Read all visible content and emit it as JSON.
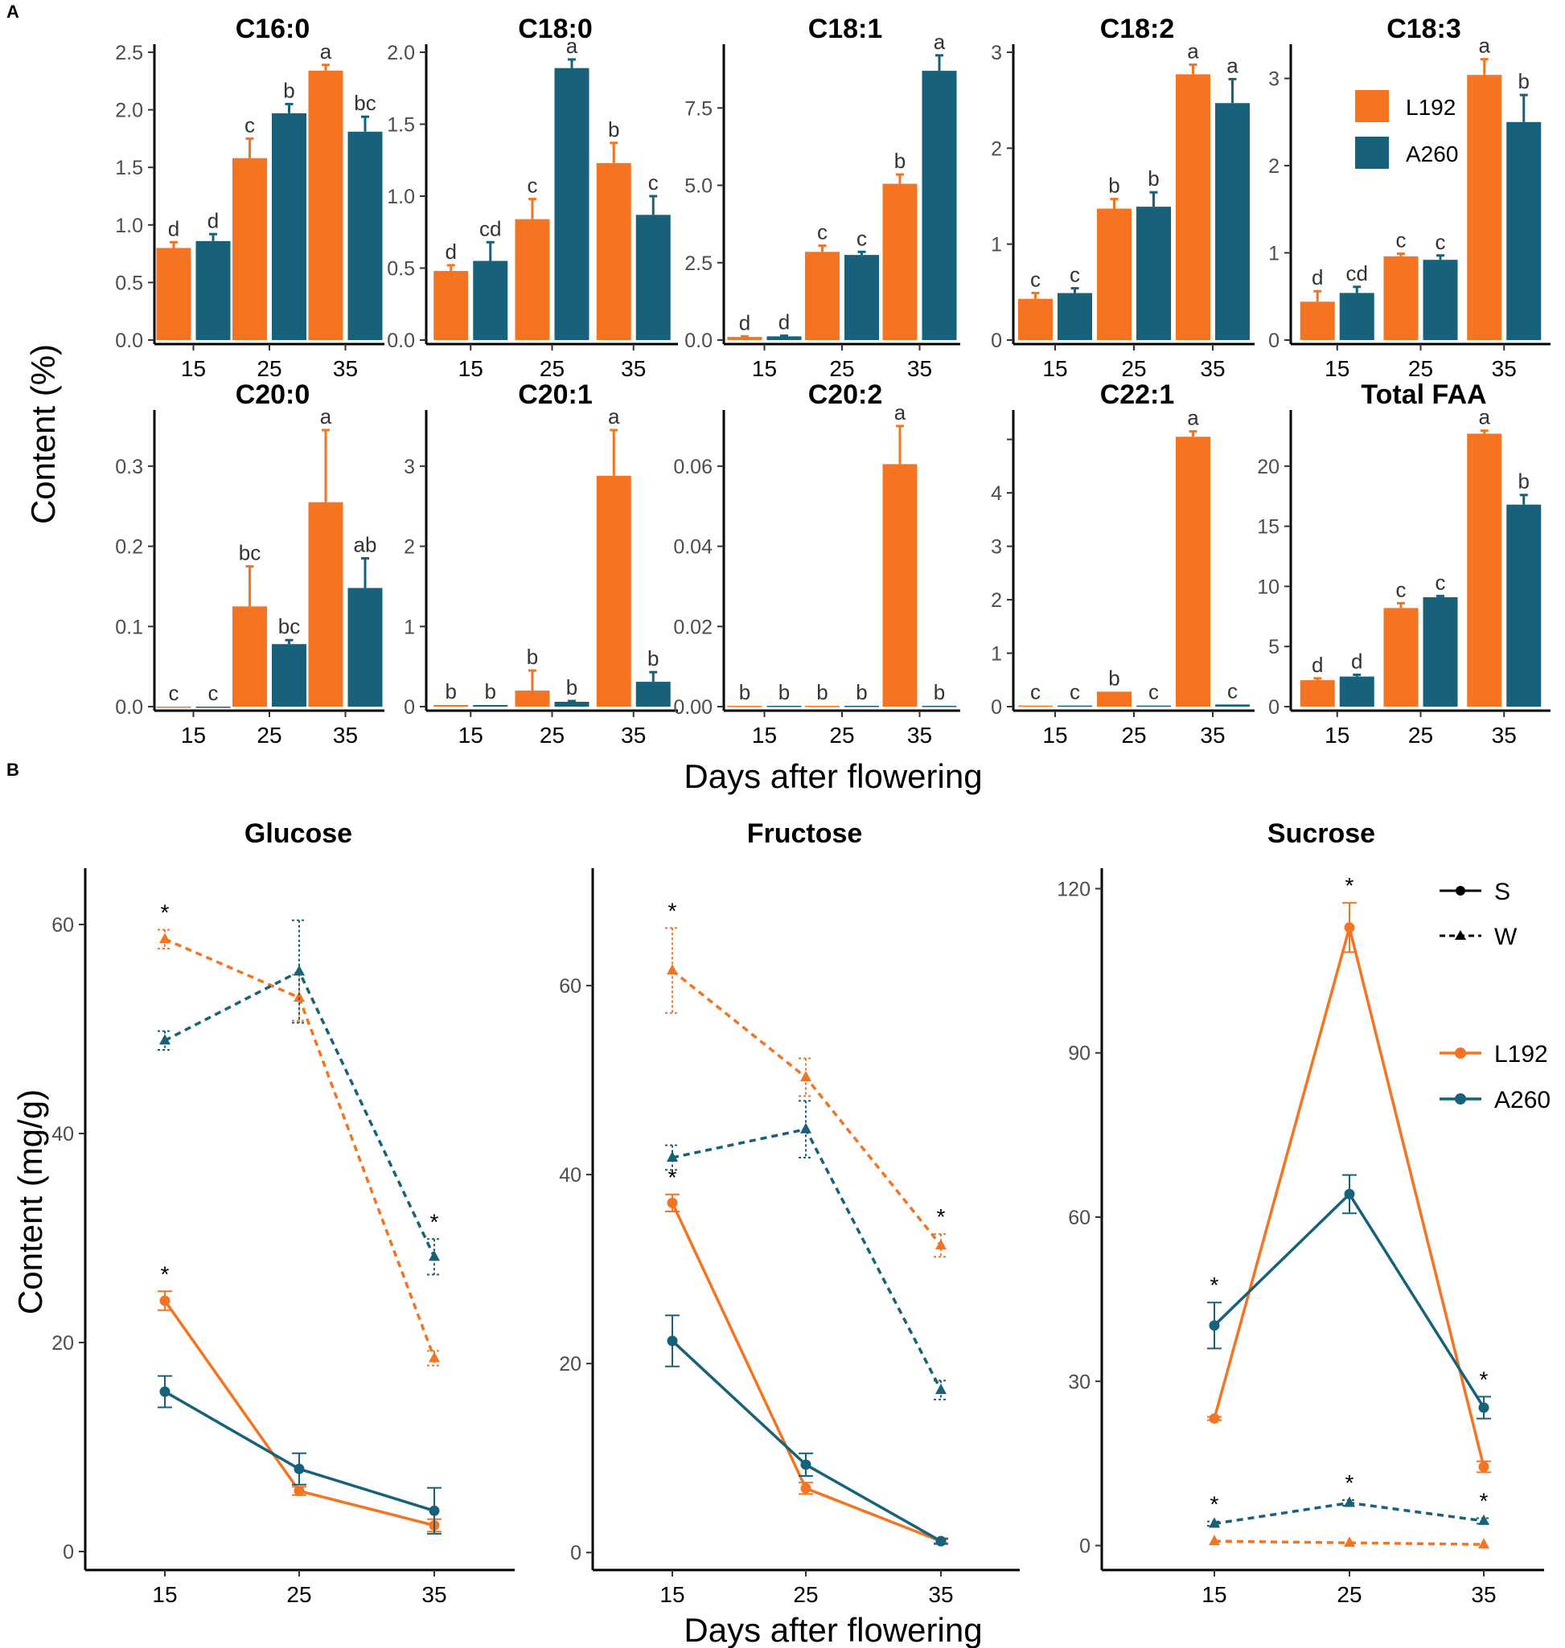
{
  "panel_a": {
    "label": "A",
    "ylabel": "Content (%)",
    "xlabel": "Days after flowering",
    "legend": [
      "L192",
      "A260"
    ]
  },
  "panel_b": {
    "label": "B",
    "ylabel": "Content (mg/g)",
    "xlabel": "Days after flowering",
    "legend_lines": [
      "S",
      "W"
    ],
    "legend_colors": [
      "L192",
      "A260"
    ]
  },
  "colors": {
    "L192": "#F47421",
    "A260": "#17617A",
    "star": "#000000"
  },
  "chart_data": [
    {
      "type": "bar",
      "title": "C16:0",
      "categories": [
        "15",
        "25",
        "35"
      ],
      "ylim": [
        0,
        2.5
      ],
      "ticks": [
        0.0,
        0.5,
        1.0,
        1.5,
        2.0,
        2.5
      ],
      "tick_labels": [
        "0.0",
        "0.5",
        "1.0",
        "1.5",
        "2.0",
        "2.5"
      ],
      "series": [
        {
          "name": "L192",
          "values": [
            0.8,
            1.58,
            2.34
          ],
          "errors": [
            0.05,
            0.17,
            0.05
          ],
          "letters": [
            "d",
            "c",
            "a"
          ]
        },
        {
          "name": "A260",
          "values": [
            0.86,
            1.97,
            1.81
          ],
          "errors": [
            0.06,
            0.08,
            0.13
          ],
          "letters": [
            "d",
            "b",
            "bc"
          ]
        }
      ]
    },
    {
      "type": "bar",
      "title": "C18:0",
      "categories": [
        "15",
        "25",
        "35"
      ],
      "ylim": [
        0,
        2.0
      ],
      "ticks": [
        0.0,
        0.5,
        1.0,
        1.5,
        2.0
      ],
      "tick_labels": [
        "0.0",
        "0.5",
        "1.0",
        "1.5",
        "2.0"
      ],
      "series": [
        {
          "name": "L192",
          "values": [
            0.48,
            0.84,
            1.23
          ],
          "errors": [
            0.04,
            0.14,
            0.14
          ],
          "letters": [
            "d",
            "c",
            "b"
          ]
        },
        {
          "name": "A260",
          "values": [
            0.55,
            1.89,
            0.87
          ],
          "errors": [
            0.13,
            0.06,
            0.13
          ],
          "letters": [
            "cd",
            "a",
            "c"
          ]
        }
      ]
    },
    {
      "type": "bar",
      "title": "C18:1",
      "categories": [
        "15",
        "25",
        "35"
      ],
      "ylim": [
        0,
        9.3
      ],
      "ticks": [
        0.0,
        2.5,
        5.0,
        7.5
      ],
      "tick_labels": [
        "0.0",
        "2.5",
        "5.0",
        "7.5"
      ],
      "series": [
        {
          "name": "L192",
          "values": [
            0.1,
            2.85,
            5.05
          ],
          "errors": [
            0.02,
            0.2,
            0.3
          ],
          "letters": [
            "d",
            "c",
            "b"
          ]
        },
        {
          "name": "A260",
          "values": [
            0.12,
            2.75,
            8.7
          ],
          "errors": [
            0.02,
            0.1,
            0.5
          ],
          "letters": [
            "d",
            "c",
            "a"
          ]
        }
      ]
    },
    {
      "type": "bar",
      "title": "C18:2",
      "categories": [
        "15",
        "25",
        "35"
      ],
      "ylim": [
        0,
        3.0
      ],
      "ticks": [
        0,
        1,
        2,
        3
      ],
      "tick_labels": [
        "0",
        "1",
        "2",
        "3"
      ],
      "series": [
        {
          "name": "L192",
          "values": [
            0.43,
            1.37,
            2.77
          ],
          "errors": [
            0.06,
            0.1,
            0.1
          ],
          "letters": [
            "c",
            "b",
            "a"
          ]
        },
        {
          "name": "A260",
          "values": [
            0.49,
            1.39,
            2.47
          ],
          "errors": [
            0.05,
            0.15,
            0.25
          ],
          "letters": [
            "c",
            "b",
            "a"
          ]
        }
      ]
    },
    {
      "type": "bar",
      "title": "C18:3",
      "categories": [
        "15",
        "25",
        "35"
      ],
      "ylim": [
        0,
        3.3
      ],
      "ticks": [
        0,
        1,
        2,
        3
      ],
      "tick_labels": [
        "0",
        "1",
        "2",
        "3"
      ],
      "series": [
        {
          "name": "L192",
          "values": [
            0.44,
            0.96,
            3.04
          ],
          "errors": [
            0.12,
            0.03,
            0.18
          ],
          "letters": [
            "d",
            "c",
            "a"
          ]
        },
        {
          "name": "A260",
          "values": [
            0.54,
            0.92,
            2.5
          ],
          "errors": [
            0.07,
            0.05,
            0.31
          ],
          "letters": [
            "cd",
            "c",
            "b"
          ]
        }
      ]
    },
    {
      "type": "bar",
      "title": "C20:0",
      "categories": [
        "15",
        "25",
        "35"
      ],
      "ylim": [
        0,
        0.36
      ],
      "ticks": [
        0.0,
        0.1,
        0.2,
        0.3
      ],
      "tick_labels": [
        "0.0",
        "0.1",
        "0.2",
        "0.3"
      ],
      "series": [
        {
          "name": "L192",
          "values": [
            0.0,
            0.125,
            0.255
          ],
          "errors": [
            0,
            0.05,
            0.09
          ],
          "letters": [
            "c",
            "bc",
            "a"
          ]
        },
        {
          "name": "A260",
          "values": [
            0.0,
            0.078,
            0.148
          ],
          "errors": [
            0,
            0.005,
            0.037
          ],
          "letters": [
            "c",
            "bc",
            "ab"
          ]
        }
      ]
    },
    {
      "type": "bar",
      "title": "C20:1",
      "categories": [
        "15",
        "25",
        "35"
      ],
      "ylim": [
        0,
        3.6
      ],
      "ticks": [
        0,
        1,
        2,
        3
      ],
      "tick_labels": [
        "0",
        "1",
        "2",
        "3"
      ],
      "series": [
        {
          "name": "L192",
          "values": [
            0.02,
            0.2,
            2.88
          ],
          "errors": [
            0,
            0.25,
            0.57
          ],
          "letters": [
            "b",
            "b",
            "a"
          ]
        },
        {
          "name": "A260",
          "values": [
            0.02,
            0.06,
            0.31
          ],
          "errors": [
            0,
            0.01,
            0.12
          ],
          "letters": [
            "b",
            "b",
            "b"
          ]
        }
      ]
    },
    {
      "type": "bar",
      "title": "C20:2",
      "categories": [
        "15",
        "25",
        "35"
      ],
      "ylim": [
        0,
        0.072
      ],
      "ticks": [
        0.0,
        0.02,
        0.04,
        0.06
      ],
      "tick_labels": [
        "0.00",
        "0.02",
        "0.04",
        "0.06"
      ],
      "series": [
        {
          "name": "L192",
          "values": [
            0.0002,
            0.0002,
            0.0605
          ],
          "errors": [
            0,
            0,
            0.0095
          ],
          "letters": [
            "b",
            "b",
            "a"
          ]
        },
        {
          "name": "A260",
          "values": [
            0.0002,
            0.0002,
            0.0002
          ],
          "errors": [
            0,
            0,
            0
          ],
          "letters": [
            "b",
            "b",
            "b"
          ]
        }
      ]
    },
    {
      "type": "bar",
      "title": "C22:1",
      "categories": [
        "15",
        "25",
        "35"
      ],
      "ylim": [
        0,
        5.4
      ],
      "ticks": [
        0,
        1,
        2,
        3,
        4,
        5
      ],
      "tick_labels": [
        "0",
        "1",
        "2",
        "3",
        "4",
        ""
      ],
      "series": [
        {
          "name": "L192",
          "values": [
            0.02,
            0.28,
            5.05
          ],
          "errors": [
            0,
            0,
            0.1
          ],
          "letters": [
            "c",
            "b",
            "a"
          ]
        },
        {
          "name": "A260",
          "values": [
            0.02,
            0.02,
            0.04
          ],
          "errors": [
            0,
            0,
            0
          ],
          "letters": [
            "c",
            "c",
            "c"
          ]
        }
      ]
    },
    {
      "type": "bar",
      "title": "Total FAA",
      "categories": [
        "15",
        "25",
        "35"
      ],
      "ylim": [
        0,
        24
      ],
      "ticks": [
        0,
        5,
        10,
        15,
        20
      ],
      "tick_labels": [
        "0",
        "5",
        "10",
        "15",
        "20"
      ],
      "series": [
        {
          "name": "L192",
          "values": [
            2.2,
            8.2,
            22.7
          ],
          "errors": [
            0.15,
            0.4,
            0.25
          ],
          "letters": [
            "d",
            "c",
            "a"
          ]
        },
        {
          "name": "A260",
          "values": [
            2.5,
            9.1,
            16.8
          ],
          "errors": [
            0.15,
            0.1,
            0.8
          ],
          "letters": [
            "d",
            "c",
            "b"
          ]
        }
      ]
    },
    {
      "type": "line",
      "title": "Glucose",
      "x": [
        "15",
        "25",
        "35"
      ],
      "ylim": [
        -1,
        65
      ],
      "ticks": [
        0,
        20,
        40,
        60
      ],
      "tick_labels": [
        "0",
        "20",
        "40",
        "60"
      ],
      "series": [
        {
          "name": "L192 S",
          "variety": "L192",
          "style": "S",
          "values": [
            24.0,
            5.8,
            2.5
          ],
          "errors": [
            0.9,
            0.4,
            0.6
          ],
          "stars": [
            true,
            false,
            false
          ]
        },
        {
          "name": "A260 S",
          "variety": "A260",
          "style": "S",
          "values": [
            15.3,
            7.9,
            3.9
          ],
          "errors": [
            1.5,
            1.5,
            2.2
          ],
          "stars": [
            false,
            false,
            false
          ]
        },
        {
          "name": "L192 W",
          "variety": "L192",
          "style": "W",
          "values": [
            58.6,
            53.0,
            18.5
          ],
          "errors": [
            0.9,
            2.2,
            0.7
          ],
          "stars": [
            true,
            false,
            false
          ]
        },
        {
          "name": "A260 W",
          "variety": "A260",
          "style": "W",
          "values": [
            48.9,
            55.5,
            28.2
          ],
          "errors": [
            0.9,
            4.9,
            1.7
          ],
          "stars": [
            false,
            false,
            true
          ]
        }
      ]
    },
    {
      "type": "line",
      "title": "Fructose",
      "x": [
        "15",
        "25",
        "35"
      ],
      "ylim": [
        -1,
        72
      ],
      "ticks": [
        0,
        20,
        40,
        60
      ],
      "tick_labels": [
        "0",
        "20",
        "40",
        "60"
      ],
      "series": [
        {
          "name": "L192 S",
          "variety": "L192",
          "style": "S",
          "values": [
            37.0,
            6.8,
            1.2
          ],
          "errors": [
            0.9,
            0.6,
            0.2
          ],
          "stars": [
            true,
            false,
            false
          ]
        },
        {
          "name": "A260 S",
          "variety": "A260",
          "style": "S",
          "values": [
            22.4,
            9.3,
            1.2
          ],
          "errors": [
            2.7,
            1.2,
            0.3
          ],
          "stars": [
            false,
            false,
            false
          ]
        },
        {
          "name": "L192 W",
          "variety": "L192",
          "style": "W",
          "values": [
            61.6,
            50.3,
            32.5
          ],
          "errors": [
            4.5,
            2.0,
            1.2
          ],
          "stars": [
            true,
            false,
            true
          ]
        },
        {
          "name": "A260 W",
          "variety": "A260",
          "style": "W",
          "values": [
            41.8,
            44.8,
            17.2
          ],
          "errors": [
            1.3,
            3.0,
            1.0
          ],
          "stars": [
            false,
            false,
            false
          ]
        }
      ]
    },
    {
      "type": "line",
      "title": "Sucrose",
      "x": [
        "15",
        "25",
        "35"
      ],
      "ylim": [
        -3,
        123
      ],
      "ticks": [
        0,
        30,
        60,
        90,
        120
      ],
      "tick_labels": [
        "0",
        "30",
        "60",
        "90",
        "120"
      ],
      "series": [
        {
          "name": "L192 S",
          "variety": "L192",
          "style": "S",
          "values": [
            23.2,
            112.9,
            14.4
          ],
          "errors": [
            0.3,
            4.5,
            1.0
          ],
          "stars": [
            false,
            true,
            false
          ]
        },
        {
          "name": "A260 S",
          "variety": "A260",
          "style": "S",
          "values": [
            40.2,
            64.2,
            25.2
          ],
          "errors": [
            4.2,
            3.5,
            2.0
          ],
          "stars": [
            true,
            false,
            true
          ]
        },
        {
          "name": "L192 W",
          "variety": "L192",
          "style": "W",
          "values": [
            0.8,
            0.5,
            0.2
          ],
          "errors": [
            0,
            0,
            0
          ],
          "stars": [
            false,
            false,
            false
          ]
        },
        {
          "name": "A260 W",
          "variety": "A260",
          "style": "W",
          "values": [
            4.0,
            7.8,
            4.5
          ],
          "errors": [
            0.4,
            0.5,
            0.5
          ],
          "stars": [
            true,
            true,
            true
          ]
        }
      ]
    }
  ]
}
